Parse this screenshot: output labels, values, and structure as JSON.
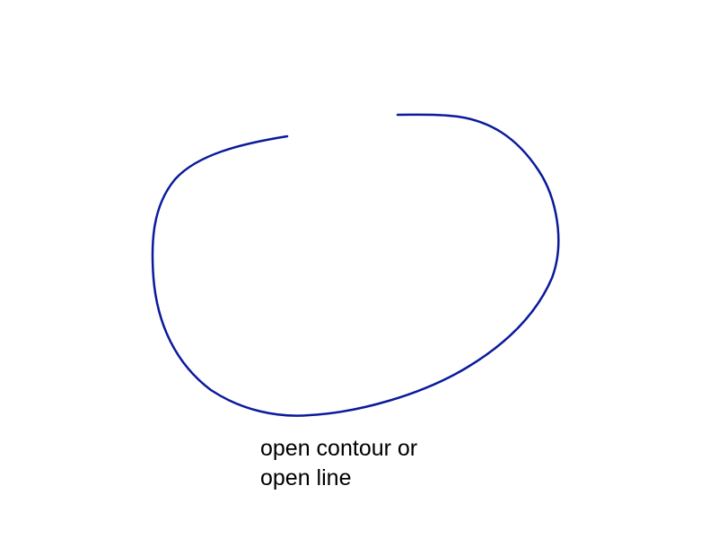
{
  "caption": {
    "line1": "open contour or",
    "line2": "open line"
  },
  "colors": {
    "stroke": "#0a1a9c",
    "text": "#000000",
    "background": "#ffffff"
  },
  "shape": {
    "kind": "open-contour"
  }
}
